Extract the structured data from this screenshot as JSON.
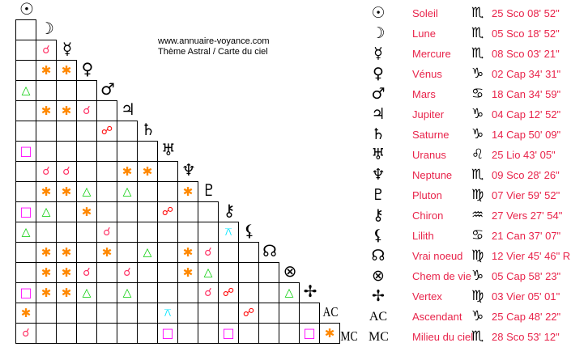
{
  "header": {
    "site": "www.annuaire-voyance.com",
    "subtitle": "Thème Astral / Carte du ciel"
  },
  "aspect_colors": {
    "conjunction": "#ff3366",
    "sextile": "#ff8800",
    "trine": "#00cc00",
    "square": "#ff00ff",
    "opposition": "#ff0000",
    "quincunx": "#00e5ff"
  },
  "aspect_glyphs": {
    "c": "☌",
    "s": "✱",
    "t": "△",
    "q": "□",
    "o": "☍",
    "x": "⚻"
  },
  "planets": [
    {
      "glyph": "☉",
      "name": "Soleil",
      "sign": "♏",
      "position": "25 Sco 08' 52\""
    },
    {
      "glyph": "☽",
      "name": "Lune",
      "sign": "♏",
      "position": "05 Sco 18' 52\""
    },
    {
      "glyph": "☿",
      "name": "Mercure",
      "sign": "♏",
      "position": "08 Sco 03' 21\""
    },
    {
      "glyph": "♀",
      "name": "Vénus",
      "sign": "♑",
      "position": "02 Cap 34' 31\""
    },
    {
      "glyph": "♂",
      "name": "Mars",
      "sign": "♋",
      "position": "18 Can 34' 59\""
    },
    {
      "glyph": "♃",
      "name": "Jupiter",
      "sign": "♑",
      "position": "04 Cap 12' 52\""
    },
    {
      "glyph": "♄",
      "name": "Saturne",
      "sign": "♑",
      "position": "14 Cap 50' 09\""
    },
    {
      "glyph": "♅",
      "name": "Uranus",
      "sign": "♌",
      "position": "25 Lio 43' 05\""
    },
    {
      "glyph": "♆",
      "name": "Neptune",
      "sign": "♏",
      "position": "09 Sco 28' 26\""
    },
    {
      "glyph": "♇",
      "name": "Pluton",
      "sign": "♍",
      "position": "07 Vier 59' 52\""
    },
    {
      "glyph": "⚷",
      "name": "Chiron",
      "sign": "♒",
      "position": "27 Vers 27' 54\""
    },
    {
      "glyph": "⚸",
      "name": "Lilith",
      "sign": "♋",
      "position": "21 Can 37' 07\""
    },
    {
      "glyph": "☊",
      "name": "Vrai noeud",
      "sign": "♍",
      "position": "12 Vier 45' 46\" R"
    },
    {
      "glyph": "⊗",
      "name": "Chem de vie",
      "sign": "♑",
      "position": "05 Cap 58' 23\""
    },
    {
      "glyph": "✢",
      "name": "Vertex",
      "sign": "♍",
      "position": "03 Vier 05' 01\""
    },
    {
      "glyph": "AC",
      "name": "Ascendant",
      "sign": "♑",
      "position": "25 Cap 48' 22\""
    },
    {
      "glyph": "MC",
      "name": "Milieu du ciel",
      "sign": "♏",
      "position": "28 Sco 53' 12\""
    }
  ],
  "aspect_grid": [
    [
      ""
    ],
    [
      "",
      "c"
    ],
    [
      "",
      "s",
      "s"
    ],
    [
      "t",
      "",
      "",
      ""
    ],
    [
      "",
      "s",
      "s",
      "c",
      ""
    ],
    [
      "",
      "",
      "",
      "",
      "o",
      ""
    ],
    [
      "q",
      "",
      "",
      "",
      "",
      "",
      ""
    ],
    [
      "",
      "c",
      "c",
      "",
      "",
      "s",
      "s",
      ""
    ],
    [
      "",
      "s",
      "s",
      "t",
      "",
      "t",
      "",
      "",
      "s"
    ],
    [
      "q",
      "t",
      "",
      "s",
      "",
      "",
      "",
      "o",
      "",
      ""
    ],
    [
      "t",
      "",
      "",
      "",
      "c",
      "",
      "",
      "",
      "",
      "",
      "x"
    ],
    [
      "",
      "s",
      "s",
      "",
      "s",
      "",
      "t",
      "",
      "s",
      "c",
      "",
      ""
    ],
    [
      "",
      "s",
      "s",
      "c",
      "",
      "c",
      "",
      "",
      "s",
      "t",
      "",
      "",
      ""
    ],
    [
      "q",
      "s",
      "s",
      "t",
      "",
      "t",
      "",
      "",
      "",
      "c",
      "o",
      "",
      "",
      "t"
    ],
    [
      "s",
      "",
      "",
      "",
      "",
      "",
      "",
      "x",
      "",
      "",
      "",
      "o",
      "",
      "",
      ""
    ],
    [
      "c",
      "",
      "",
      "",
      "",
      "",
      "",
      "q",
      "",
      "",
      "q",
      "",
      "",
      "",
      "q",
      "s"
    ]
  ]
}
